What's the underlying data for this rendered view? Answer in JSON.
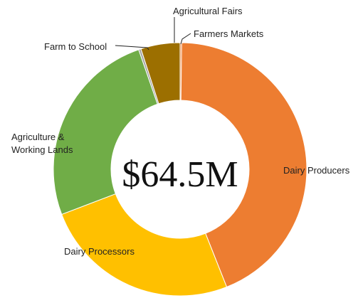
{
  "chart_data": {
    "type": "pie",
    "variant": "donut",
    "center_label": "$64.5M",
    "slices": [
      {
        "label": "Farmers Markets",
        "value": 0.2,
        "color": "#ed7d31"
      },
      {
        "label": "Dairy Producers",
        "value": 43.8,
        "color": "#ed7d31"
      },
      {
        "label": "Dairy Processors",
        "value": 25.2,
        "color": "#ffc000"
      },
      {
        "label": "Agriculture & Working Lands",
        "value": 25.5,
        "color": "#70ad47"
      },
      {
        "label": "Farm to School",
        "value": 0.3,
        "color": "#a5a5a5"
      },
      {
        "label": "Agricultural Fairs",
        "value": 5.0,
        "color": "#9c6f00"
      }
    ],
    "start_angle_deg": 0,
    "direction": "clockwise"
  }
}
